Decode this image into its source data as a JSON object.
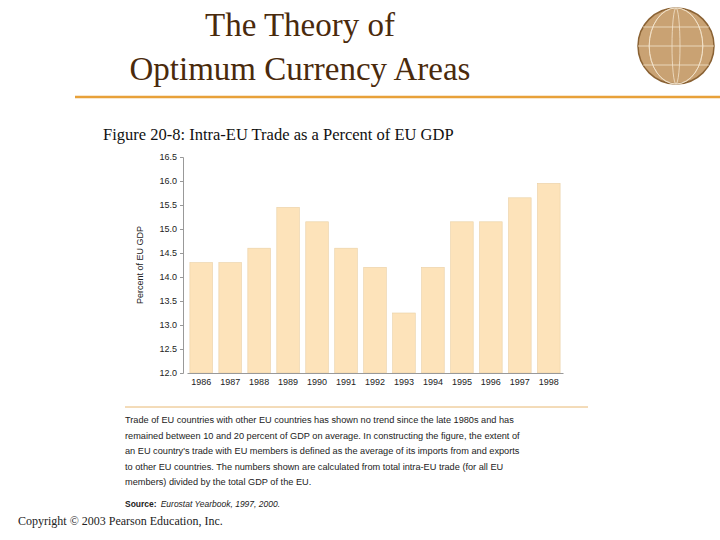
{
  "slide": {
    "title_lines": [
      "The Theory of",
      "Optimum Currency Areas"
    ],
    "copyright": "Copyright © 2003 Pearson Education, Inc."
  },
  "chart_data": {
    "type": "bar",
    "title": "Figure 20-8: Intra-EU Trade as a Percent of EU GDP",
    "y_label": "Percent of EU GDP",
    "categories": [
      "1986",
      "1987",
      "1988",
      "1989",
      "1990",
      "1991",
      "1992",
      "1993",
      "1994",
      "1995",
      "1996",
      "1997",
      "1998"
    ],
    "values": [
      14.3,
      14.3,
      14.6,
      15.45,
      15.15,
      14.6,
      14.2,
      13.25,
      14.2,
      15.15,
      15.15,
      15.65,
      15.95
    ],
    "color": "#fde3ba",
    "ylim": [
      12,
      16.5
    ],
    "yticks": [
      {
        "value": 12,
        "label": "12.0"
      },
      12.5,
      {
        "value": 13,
        "label": "13.0"
      },
      13.5,
      {
        "value": 14,
        "label": "14.0"
      },
      14.5,
      {
        "value": 15,
        "label": "15.0"
      },
      15.5,
      {
        "value": 16,
        "label": "16.0"
      },
      16.5
    ],
    "grid": false,
    "caption": [
      "Trade of EU countries with other EU countries has shown no trend since the late 1980s and has",
      "remained between 10 and 20 percent of GDP on average. In constructing the figure, the extent of",
      "an EU country's trade with EU members is defined as the average of its imports from and exports",
      "to other EU countries. The numbers shown are calculated from total intra-EU trade (for all EU",
      "members) divided by the total GDP of the EU."
    ],
    "source_label": "Source:",
    "source": "Eurostat Yearbook, 1997, 2000."
  }
}
